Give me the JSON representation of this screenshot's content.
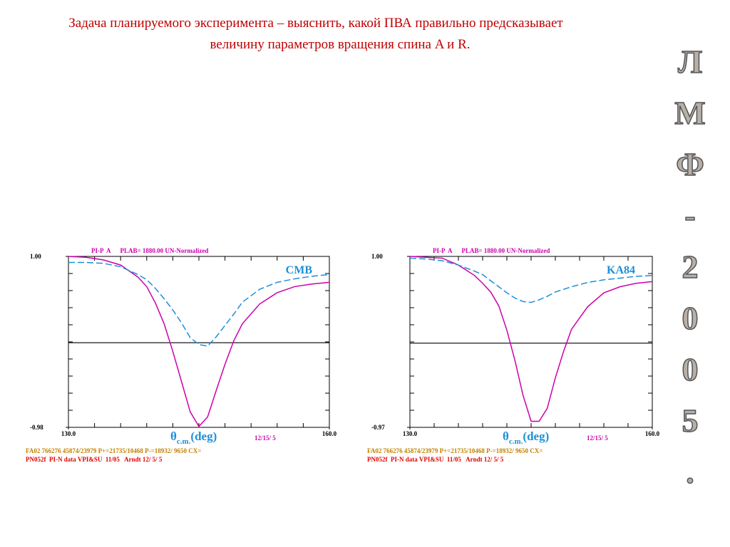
{
  "heading": [
    "Задача планируемого эксперимента – выяснить, какой ПВА правильно предсказывает",
    "величину параметров вращения спина  A и R."
  ],
  "side_text": [
    "Л",
    "М",
    "Ф",
    "-",
    "2",
    "0",
    "0",
    "5",
    "."
  ],
  "chart_data": [
    {
      "type": "line",
      "title": "PI-P  A      PLAB= 1880.00 UN-Normalized",
      "x": [
        130,
        132,
        134,
        136,
        138,
        139,
        140,
        141,
        142,
        143,
        144,
        145,
        146,
        147,
        148,
        149,
        150,
        152,
        154,
        156,
        158,
        160
      ],
      "series": [
        {
          "color": "#cc00aa",
          "dash": false,
          "values": [
            1.0,
            0.99,
            0.96,
            0.9,
            0.76,
            0.65,
            0.46,
            0.22,
            -0.1,
            -0.45,
            -0.8,
            -0.97,
            -0.86,
            -0.55,
            -0.25,
            0.02,
            0.22,
            0.45,
            0.58,
            0.65,
            0.68,
            0.7
          ]
        },
        {
          "name": "CMB",
          "color": "#1e8fd8",
          "dash": true,
          "values": [
            0.93,
            0.93,
            0.92,
            0.88,
            0.79,
            0.73,
            0.63,
            0.51,
            0.38,
            0.23,
            0.06,
            -0.02,
            -0.04,
            0.07,
            0.2,
            0.33,
            0.47,
            0.62,
            0.7,
            0.74,
            0.77,
            0.79
          ]
        }
      ],
      "xlim": [
        130,
        160
      ],
      "xticks": [
        {
          "value": 130,
          "label": "130.0"
        },
        {
          "value": 160,
          "label": "160.0"
        }
      ],
      "ylim": [
        -0.98,
        1.0
      ],
      "yticks": [
        {
          "value": 1.0,
          "label": "1.00"
        },
        {
          "value": -0.98,
          "label": "-0.98"
        }
      ],
      "reference_line": 0,
      "minor_divisions": 10,
      "xlabel": {
        "symbol": "θ",
        "subscript": "c.m.",
        "unit": "(deg)"
      },
      "date": "12/15/ 5",
      "footer": [
        "FA02 766276 45874/23979 P+=21735/10468 P-=18932/ 9650 CX=",
        "PN052f  PI-N data VPI&SU  11/05   Arndt 12/ 5/ 5"
      ]
    },
    {
      "type": "line",
      "title": "PI-P  A      PLAB= 1880.00 UN-Normalized",
      "x": [
        130,
        132,
        134,
        136,
        138,
        139,
        140,
        141,
        142,
        143,
        144,
        145,
        146,
        147,
        148,
        149,
        150,
        152,
        154,
        156,
        158,
        160
      ],
      "series": [
        {
          "color": "#cc00aa",
          "dash": false,
          "values": [
            1.0,
            0.99,
            0.98,
            0.9,
            0.78,
            0.69,
            0.59,
            0.43,
            0.15,
            -0.2,
            -0.6,
            -0.9,
            -0.9,
            -0.75,
            -0.4,
            -0.1,
            0.16,
            0.42,
            0.58,
            0.65,
            0.69,
            0.71
          ]
        },
        {
          "name": "KA84",
          "color": "#1e8fd8",
          "dash": true,
          "values": [
            0.98,
            0.97,
            0.95,
            0.9,
            0.83,
            0.79,
            0.72,
            0.65,
            0.58,
            0.52,
            0.48,
            0.47,
            0.5,
            0.54,
            0.59,
            0.62,
            0.65,
            0.7,
            0.73,
            0.75,
            0.77,
            0.78
          ]
        }
      ],
      "xlim": [
        130,
        160
      ],
      "xticks": [
        {
          "value": 130,
          "label": "130.0"
        },
        {
          "value": 160,
          "label": "160.0"
        }
      ],
      "ylim": [
        -0.97,
        1.0
      ],
      "yticks": [
        {
          "value": 1.0,
          "label": "1.00"
        },
        {
          "value": -0.97,
          "label": "-0.97"
        }
      ],
      "reference_line": 0,
      "minor_divisions": 10,
      "xlabel": {
        "symbol": "θ",
        "subscript": "c.m.",
        "unit": "(deg)"
      },
      "date": "12/15/ 5",
      "footer": [
        "FA02 766276 45874/23979 P+=21735/10468 P-=18932/ 9650 CX=",
        "PN052f  PI-N data VPI&SU  11/05   Arndt 12/ 5/ 5"
      ]
    }
  ]
}
